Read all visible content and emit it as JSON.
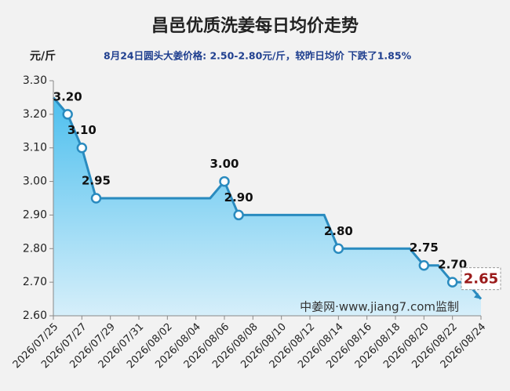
{
  "chart_data": {
    "type": "area",
    "title": "昌邑优质洗姜每日均价走势",
    "y_label": "元/斤",
    "subtitle": "8月24日圆头大姜价格: 2.50-2.80元/斤，较昨日均价 下跌了1.85%",
    "annotation": "中姜网·www.jiang7.com监制",
    "categories": [
      "2026/07/25",
      null,
      "2026/07/27",
      null,
      "2026/07/29",
      null,
      "2026/07/31",
      null,
      "2026/08/02",
      null,
      "2026/08/04",
      null,
      "2026/08/06",
      null,
      "2026/08/08",
      null,
      "2026/08/10",
      null,
      "2026/08/12",
      null,
      "2026/08/14",
      null,
      "2026/08/16",
      null,
      "2026/08/18",
      null,
      "2026/08/20",
      null,
      "2026/08/22",
      null,
      "2026/08/24"
    ],
    "values": [
      3.25,
      3.2,
      3.1,
      2.95,
      2.95,
      2.95,
      2.95,
      2.95,
      2.95,
      2.95,
      2.95,
      2.95,
      3.0,
      2.9,
      2.9,
      2.9,
      2.9,
      2.9,
      2.9,
      2.9,
      2.8,
      2.8,
      2.8,
      2.8,
      2.8,
      2.8,
      2.75,
      2.75,
      2.7,
      2.7,
      2.65
    ],
    "value_labels": [
      null,
      "3.20",
      "3.10",
      "2.95",
      null,
      null,
      null,
      null,
      null,
      null,
      null,
      null,
      "3.00",
      "2.90",
      null,
      null,
      null,
      null,
      null,
      null,
      "2.80",
      null,
      null,
      null,
      null,
      null,
      "2.75",
      null,
      "2.70",
      null,
      "2.65"
    ],
    "color": "#2a8bbf",
    "ylim": [
      2.6,
      3.3
    ],
    "yticks": [
      {
        "value": 2.6,
        "label": "2.60"
      },
      {
        "value": 2.7,
        "label": "2.70"
      },
      {
        "value": 2.8,
        "label": "2.80"
      },
      {
        "value": 2.9,
        "label": "2.90"
      },
      {
        "value": 3.0,
        "label": "3.00"
      },
      {
        "value": 3.1,
        "label": "3.10"
      },
      {
        "value": 3.2,
        "label": "3.20"
      },
      {
        "value": 3.3,
        "label": "3.30"
      }
    ]
  }
}
